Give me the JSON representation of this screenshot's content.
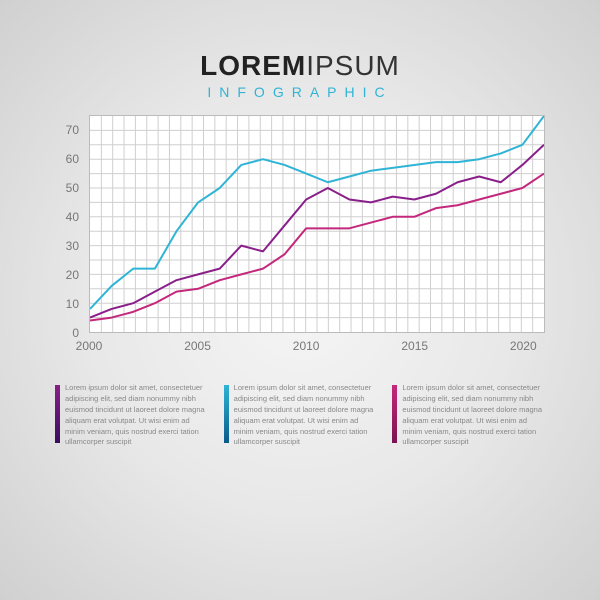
{
  "header": {
    "title_bold": "LOREM",
    "title_light": "IPSUM",
    "subtitle": "INFOGRAPHIC",
    "title_color": "#333333",
    "subtitle_color": "#2fb4d6"
  },
  "chart": {
    "type": "line",
    "background_color": "#ffffff",
    "grid_color": "#cfcfcf",
    "border_color": "#bbbbbb",
    "axis_label_color": "#777777",
    "axis_fontsize": 12,
    "ylim": [
      0,
      75
    ],
    "yticks": [
      70,
      60,
      50,
      40,
      30,
      20,
      10,
      0
    ],
    "xlim": [
      2000,
      2021
    ],
    "xticks": [
      2000,
      2005,
      2010,
      2015,
      2020
    ],
    "x_gridlines": 40,
    "y_gridlines": 15,
    "line_width": 2,
    "series": [
      {
        "name": "cyan",
        "color": "#2fb4d6",
        "x": [
          2000,
          2001,
          2002,
          2003,
          2004,
          2005,
          2006,
          2007,
          2008,
          2009,
          2010,
          2011,
          2012,
          2013,
          2014,
          2015,
          2016,
          2017,
          2018,
          2019,
          2020,
          2021
        ],
        "y": [
          8,
          16,
          22,
          22,
          35,
          45,
          50,
          58,
          60,
          58,
          55,
          52,
          54,
          56,
          57,
          58,
          59,
          59,
          60,
          62,
          65,
          75
        ]
      },
      {
        "name": "purple",
        "color": "#8a1f8a",
        "x": [
          2000,
          2001,
          2002,
          2003,
          2004,
          2005,
          2006,
          2007,
          2008,
          2009,
          2010,
          2011,
          2012,
          2013,
          2014,
          2015,
          2016,
          2017,
          2018,
          2019,
          2020,
          2021
        ],
        "y": [
          5,
          8,
          10,
          14,
          18,
          20,
          22,
          30,
          28,
          37,
          46,
          50,
          46,
          45,
          47,
          46,
          48,
          52,
          54,
          52,
          58,
          65
        ]
      },
      {
        "name": "magenta",
        "color": "#c4287c",
        "x": [
          2000,
          2001,
          2002,
          2003,
          2004,
          2005,
          2006,
          2007,
          2008,
          2009,
          2010,
          2011,
          2012,
          2013,
          2014,
          2015,
          2016,
          2017,
          2018,
          2019,
          2020,
          2021
        ],
        "y": [
          4,
          5,
          7,
          10,
          14,
          15,
          18,
          20,
          22,
          27,
          36,
          36,
          36,
          38,
          40,
          40,
          43,
          44,
          46,
          48,
          50,
          55
        ]
      }
    ]
  },
  "columns": [
    {
      "bar_gradient_top": "#8a1f8a",
      "bar_gradient_bottom": "#3a0d5e",
      "text": "Lorem ipsum dolor sit amet, consectetuer adipiscing elit, sed diam nonummy nibh euismod tincidunt ut laoreet dolore magna aliquam erat volutpat. Ut wisi enim ad minim veniam, quis nostrud exerci tation ullamcorper suscipit"
    },
    {
      "bar_gradient_top": "#2fb4d6",
      "bar_gradient_bottom": "#0a5a8a",
      "text": "Lorem ipsum dolor sit amet, consectetuer adipiscing elit, sed diam nonummy nibh euismod tincidunt ut laoreet dolore magna aliquam erat volutpat. Ut wisi enim ad minim veniam, quis nostrud exerci tation ullamcorper suscipit"
    },
    {
      "bar_gradient_top": "#c4287c",
      "bar_gradient_bottom": "#7a1450",
      "text": "Lorem ipsum dolor sit amet, consectetuer adipiscing elit, sed diam nonummy nibh euismod tincidunt ut laoreet dolore magna aliquam erat volutpat. Ut wisi enim ad minim veniam, quis nostrud exerci tation ullamcorper suscipit"
    }
  ]
}
